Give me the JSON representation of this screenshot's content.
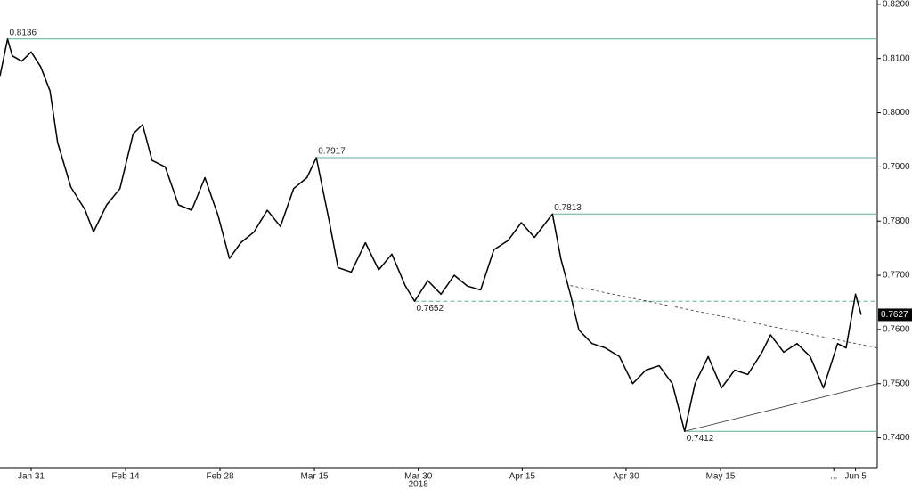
{
  "chart_data": {
    "type": "line",
    "xlabel": "2018",
    "xlim": [
      -3.3,
      89.6
    ],
    "xticks": [
      {
        "value": 0,
        "label": "Jan 31"
      },
      {
        "value": 10,
        "label": "Feb 14"
      },
      {
        "value": 20,
        "label": "Feb 28"
      },
      {
        "value": 30,
        "label": "Mar 15"
      },
      {
        "value": 41,
        "label": "Mar 30"
      },
      {
        "value": 52,
        "label": "Apr 15"
      },
      {
        "value": 63,
        "label": "Apr 30"
      },
      {
        "value": 73,
        "label": "May 15"
      },
      {
        "value": 85,
        "label": "..."
      },
      {
        "value": 87.3,
        "label": "Jun 5"
      }
    ],
    "ylim": [
      0.7345,
      0.8208
    ],
    "yticks": [
      {
        "value": 0.74,
        "label": "0.7400"
      },
      {
        "value": 0.75,
        "label": "0.7500"
      },
      {
        "value": 0.76,
        "label": "0.7600"
      },
      {
        "value": 0.77,
        "label": "0.7700"
      },
      {
        "value": 0.78,
        "label": "0.7800"
      },
      {
        "value": 0.79,
        "label": "0.7900"
      },
      {
        "value": 0.8,
        "label": "0.8000"
      },
      {
        "value": 0.81,
        "label": "0.8100"
      },
      {
        "value": 0.82,
        "label": "0.8200"
      }
    ],
    "series": [
      {
        "color": "#000000",
        "x": [
          -3.3,
          -2.5,
          -2,
          -1,
          0,
          1,
          2,
          2.8,
          4.2,
          5.7,
          6.6,
          8,
          9.4,
          10.8,
          11.8,
          12.8,
          14.2,
          15.6,
          17,
          18.4,
          19.8,
          21,
          22.2,
          23.6,
          25,
          26.4,
          27.8,
          29.2,
          30.2,
          31.6,
          32.5,
          33.9,
          35.4,
          36.8,
          38.2,
          39.6,
          40.6,
          42,
          43.4,
          44.8,
          46.2,
          47.6,
          49,
          50.5,
          51.9,
          53.3,
          55.2,
          56.1,
          57.1,
          58,
          59.4,
          60.8,
          62.3,
          63.7,
          65.1,
          66.5,
          67.9,
          69.2,
          70.3,
          71.7,
          73.1,
          74.5,
          75.9,
          77.4,
          78.3,
          79.7,
          81.1,
          82.5,
          83.9,
          85.4,
          86.3,
          87.3,
          87.9
        ],
        "values": [
          0.8068,
          0.8136,
          0.8105,
          0.8095,
          0.8112,
          0.8085,
          0.804,
          0.7945,
          0.7863,
          0.7821,
          0.778,
          0.783,
          0.786,
          0.7961,
          0.7978,
          0.7912,
          0.79,
          0.783,
          0.782,
          0.788,
          0.781,
          0.7731,
          0.776,
          0.778,
          0.782,
          0.779,
          0.786,
          0.788,
          0.7917,
          0.7797,
          0.7714,
          0.7706,
          0.776,
          0.771,
          0.7739,
          0.7681,
          0.7652,
          0.769,
          0.7665,
          0.77,
          0.768,
          0.7673,
          0.7747,
          0.7764,
          0.7797,
          0.777,
          0.7813,
          0.773,
          0.7665,
          0.7599,
          0.7574,
          0.7566,
          0.755,
          0.75,
          0.7525,
          0.7533,
          0.75,
          0.7412,
          0.75,
          0.755,
          0.7492,
          0.7525,
          0.7517,
          0.7558,
          0.759,
          0.7558,
          0.7574,
          0.755,
          0.7492,
          0.7574,
          0.7566,
          0.7665,
          0.7627
        ]
      }
    ],
    "levels": [
      {
        "value": 0.8136,
        "x": -2.5,
        "style": "solid",
        "label_position": "above"
      },
      {
        "value": 0.7917,
        "x": 30.2,
        "style": "solid",
        "label_position": "above"
      },
      {
        "value": 0.7813,
        "x": 55.2,
        "style": "solid",
        "label_position": "above"
      },
      {
        "value": 0.7652,
        "x": 40.6,
        "style": "dashed",
        "label_position": "below"
      },
      {
        "value": 0.7412,
        "x": 69.2,
        "style": "solid",
        "label_position": "below"
      }
    ],
    "level_color": "#5fae9c",
    "trendlines": [
      {
        "x": [
          57.1,
          89.6
        ],
        "y": [
          0.7681,
          0.7566
        ],
        "style": "dashed"
      },
      {
        "x": [
          69.2,
          89.6
        ],
        "y": [
          0.7412,
          0.75
        ],
        "style": "solid"
      }
    ]
  }
}
